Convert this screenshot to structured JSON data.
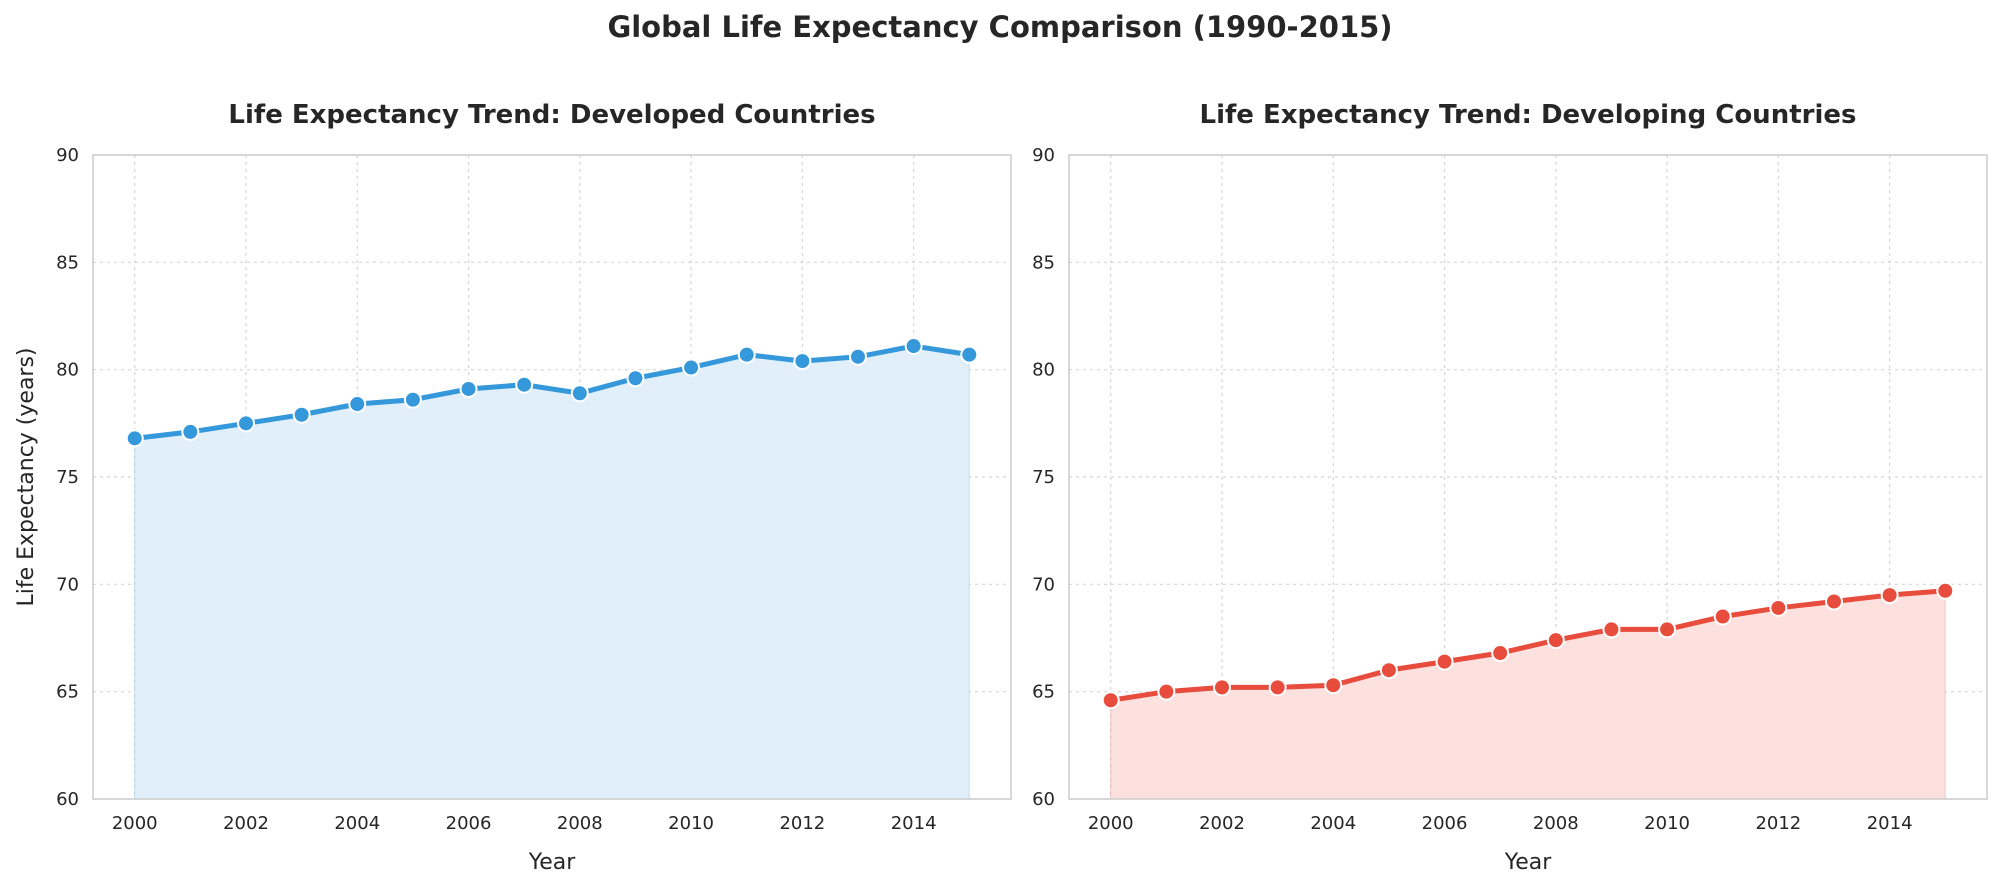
{
  "figure": {
    "suptitle": "Global Life Expectancy Comparison (1990-2015)"
  },
  "chart_data": [
    {
      "type": "area",
      "title": "Life Expectancy Trend: Developed Countries",
      "xlabel": "Year",
      "ylabel": "Life Expectancy (years)",
      "xlim": [
        1999.25,
        2015.75
      ],
      "ylim": [
        60,
        90
      ],
      "xticks": [
        2000,
        2002,
        2004,
        2006,
        2008,
        2010,
        2012,
        2014
      ],
      "yticks": [
        60,
        65,
        70,
        75,
        80,
        85,
        90
      ],
      "grid": true,
      "color": "#3498db",
      "fill_color": "#e0eff9",
      "x": [
        2000,
        2001,
        2002,
        2003,
        2004,
        2005,
        2006,
        2007,
        2008,
        2009,
        2010,
        2011,
        2012,
        2013,
        2014,
        2015
      ],
      "y": [
        76.8,
        77.1,
        77.5,
        77.9,
        78.4,
        78.6,
        79.1,
        79.3,
        78.9,
        79.6,
        80.1,
        80.7,
        80.4,
        80.6,
        81.1,
        80.7
      ]
    },
    {
      "type": "area",
      "title": "Life Expectancy Trend: Developing Countries",
      "xlabel": "Year",
      "ylabel": "",
      "xlim": [
        1999.25,
        2015.75
      ],
      "ylim": [
        60,
        90
      ],
      "xticks": [
        2000,
        2002,
        2004,
        2006,
        2008,
        2010,
        2012,
        2014
      ],
      "yticks": [
        60,
        65,
        70,
        75,
        80,
        85,
        90
      ],
      "grid": true,
      "color": "#e74c3c",
      "fill_color": "#fce1df",
      "x": [
        2000,
        2001,
        2002,
        2003,
        2004,
        2005,
        2006,
        2007,
        2008,
        2009,
        2010,
        2011,
        2012,
        2013,
        2014,
        2015
      ],
      "y": [
        64.6,
        65.0,
        65.2,
        65.2,
        65.3,
        66.0,
        66.4,
        66.8,
        67.4,
        67.9,
        67.9,
        68.5,
        68.9,
        69.2,
        69.5,
        69.7
      ]
    }
  ]
}
